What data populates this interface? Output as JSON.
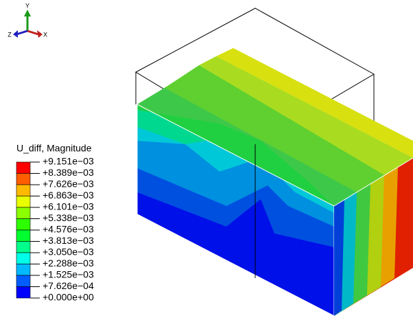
{
  "triad": {
    "y": "Y",
    "z": "Z",
    "x": "X"
  },
  "legend": {
    "title": "U_diff, Magnitude",
    "labels": [
      "+9.151e−03",
      "+8.389e−03",
      "+7.626e−03",
      "+6.863e−03",
      "+6.101e−03",
      "+5.338e−03",
      "+4.576e−03",
      "+3.813e−03",
      "+3.050e−03",
      "+2.288e−03",
      "+1.525e−03",
      "+7.626e−04",
      "+0.000e+00"
    ],
    "colors": [
      "#ff0000",
      "#ff5d00",
      "#ffb900",
      "#e8ff00",
      "#8bff00",
      "#2eff00",
      "#00ff2e",
      "#00ff8b",
      "#00ffe8",
      "#00b9ff",
      "#005dff",
      "#0000ff"
    ]
  }
}
